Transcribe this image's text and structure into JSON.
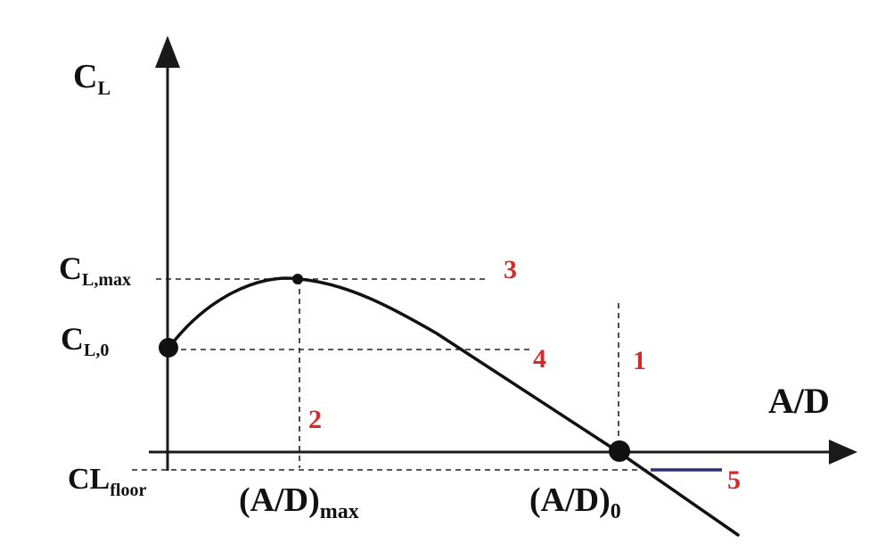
{
  "diagram": {
    "axes": {
      "y_label": {
        "main": "C",
        "sub": "L"
      },
      "x_label": "A/D"
    },
    "y_ticks": {
      "cl_max": {
        "main": "C",
        "sub": "L,max"
      },
      "cl_0": {
        "main": "C",
        "sub": "L,0"
      },
      "cl_floor": {
        "main": "CL",
        "sub": "floor"
      }
    },
    "x_ticks": {
      "ad_max": {
        "main": "(A/D)",
        "sub": "max"
      },
      "ad_0": {
        "main": "(A/D)",
        "sub": "0"
      }
    },
    "markers": [
      "1",
      "2",
      "3",
      "4",
      "5"
    ],
    "colors": {
      "axis": "#1a1a1a",
      "curve": "#111111",
      "dashed": "#222222",
      "marker_numbers": "#d62a2a",
      "floor_segment": "#2a2f7a"
    }
  }
}
